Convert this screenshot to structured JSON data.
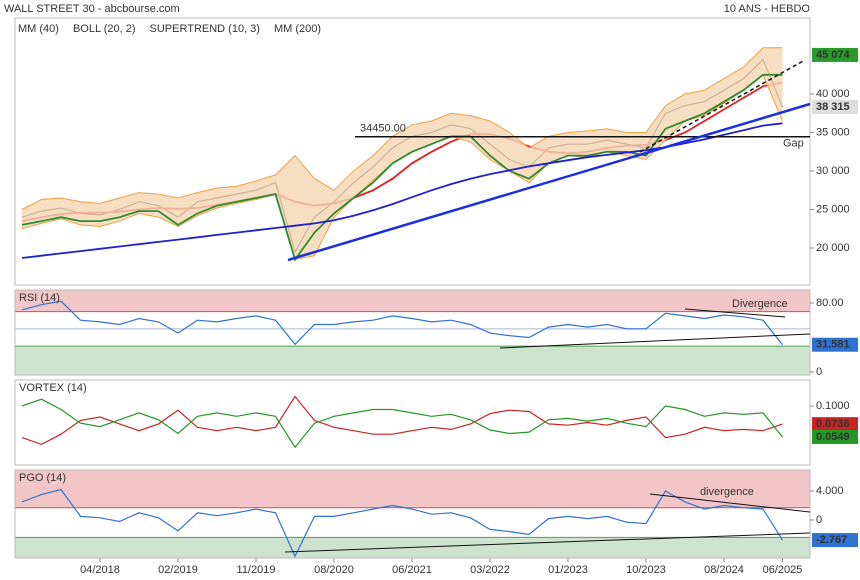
{
  "header": {
    "left": "WALL STREET 30 - abcbourse.com",
    "right": "10 ANS - HEBDO"
  },
  "chart_data": [
    {
      "type": "line",
      "categories": [
        null,
        null,
        null,
        null,
        "04/2018",
        null,
        null,
        null,
        "02/2019",
        null,
        null,
        null,
        "11/2019",
        null,
        null,
        null,
        "08/2020",
        null,
        null,
        null,
        "06/2021",
        null,
        null,
        null,
        "03/2022",
        null,
        null,
        null,
        "01/2023",
        null,
        null,
        null,
        "10/2023",
        null,
        null,
        null,
        "08/2024",
        null,
        null,
        "06/2025"
      ],
      "ylim": [
        15200,
        49870
      ],
      "yticks": [
        {
          "value": 20000,
          "label": "20 000"
        },
        {
          "value": 25000,
          "label": "25 000"
        },
        {
          "value": 30000,
          "label": "30 000"
        },
        {
          "value": 35000,
          "label": "35 000"
        },
        {
          "value": 40000,
          "label": "40 000"
        }
      ],
      "series": [
        {
          "color": "#2b2b2b",
          "values": [
            24000,
            24800,
            25200,
            24500,
            24300,
            25000,
            26000,
            25500,
            24000,
            26000,
            26500,
            27000,
            27500,
            28500,
            19500,
            24000,
            26000,
            28500,
            30500,
            33000,
            34500,
            35000,
            36000,
            35500,
            33500,
            31500,
            30500,
            33000,
            33500,
            33500,
            34000,
            33500,
            33000,
            37500,
            38500,
            39000,
            40500,
            42000,
            44500,
            38315
          ]
        },
        {
          "name": "MM (40)",
          "color": "#e02020",
          "values": [
            23500,
            24000,
            24400,
            24600,
            24600,
            24700,
            25000,
            25200,
            25100,
            25200,
            25600,
            26000,
            26500,
            27000,
            26000,
            25500,
            25800,
            26500,
            27500,
            29000,
            31000,
            32500,
            33800,
            34800,
            34800,
            34200,
            33200,
            32500,
            32300,
            32500,
            33000,
            33300,
            33400,
            34000,
            35000,
            36500,
            38000,
            39500,
            41000,
            41500
          ]
        },
        {
          "name": "BOLL (20, 2)",
          "color": "#f0a040",
          "upper": [
            25000,
            26300,
            26500,
            26000,
            25800,
            26500,
            27200,
            27000,
            26500,
            27200,
            27800,
            28000,
            28700,
            29500,
            32000,
            29000,
            27500,
            30000,
            32000,
            34500,
            36000,
            36500,
            37500,
            37200,
            36500,
            35000,
            33000,
            34500,
            35000,
            35200,
            35500,
            35000,
            35000,
            38500,
            40000,
            40500,
            42000,
            43500,
            46000,
            46000
          ],
          "lower": [
            22500,
            23200,
            23800,
            23000,
            22800,
            23500,
            24500,
            24000,
            22800,
            24200,
            25200,
            25800,
            26300,
            27000,
            18500,
            19000,
            24000,
            26500,
            28800,
            31000,
            32500,
            33500,
            34500,
            33800,
            31500,
            30000,
            28500,
            31000,
            32000,
            31800,
            32500,
            32000,
            31500,
            34000,
            36500,
            37200,
            38800,
            40500,
            42500,
            36500
          ]
        },
        {
          "name": "SUPERTREND (10, 3)",
          "color": "#c00000",
          "line_color": "#2e8b2e",
          "values": [
            23000,
            23500,
            24000,
            23500,
            23500,
            24000,
            24800,
            24800,
            23000,
            24500,
            25500,
            26000,
            26500,
            27000,
            18500,
            22000,
            24500,
            26500,
            28500,
            31000,
            32500,
            33500,
            34500,
            34500,
            32000,
            30000,
            29000,
            31000,
            32000,
            32000,
            32500,
            32500,
            32000,
            35500,
            36500,
            37500,
            39000,
            40500,
            42500,
            42500
          ]
        },
        {
          "name": "MM (200)",
          "color": "#2020d0",
          "values": [
            18700,
            19000,
            19300,
            19600,
            19900,
            20200,
            20500,
            20800,
            21100,
            21400,
            21700,
            22000,
            22300,
            22600,
            22900,
            23200,
            23600,
            24200,
            24900,
            25700,
            26600,
            27500,
            28300,
            29000,
            29600,
            30100,
            30600,
            31000,
            31400,
            31800,
            32100,
            32400,
            32700,
            33100,
            33600,
            34100,
            34700,
            35300,
            35900,
            36200
          ]
        }
      ],
      "level_line": {
        "value": 34450,
        "label": "34450.00"
      },
      "high_label": {
        "value": 45074,
        "label": "45 074",
        "color": "#2a9a2a"
      },
      "last_label": {
        "value": 38315,
        "label": "38 315",
        "color": "#dddddd"
      },
      "gap_text": "Gap"
    },
    {
      "type": "line",
      "title": "RSI (14)",
      "ylim": [
        -3.5,
        95
      ],
      "yticks": [
        {
          "value": 80,
          "label": "80.00"
        },
        0
      ],
      "upper_zone": 70,
      "lower_zone": 30,
      "midline": 50,
      "annotation": "Divergence",
      "series": [
        {
          "color": "#2f72d0",
          "values": [
            72,
            78,
            82,
            60,
            58,
            55,
            62,
            58,
            45,
            60,
            58,
            62,
            65,
            60,
            32,
            55,
            55,
            58,
            60,
            65,
            62,
            58,
            60,
            55,
            45,
            42,
            40,
            52,
            55,
            52,
            55,
            50,
            50,
            68,
            65,
            62,
            66,
            64,
            60,
            31.581
          ]
        }
      ]
    },
    {
      "type": "line",
      "title": "VORTEX (14)",
      "ylim": [
        0.014,
        0.138
      ],
      "yticks": [
        {
          "value": 0.1,
          "label": "0.1000"
        }
      ],
      "series": [
        {
          "color": "#cc2222",
          "values": [
            0.054,
            0.044,
            0.059,
            0.079,
            0.084,
            0.074,
            0.064,
            0.074,
            0.094,
            0.069,
            0.064,
            0.069,
            0.064,
            0.069,
            0.114,
            0.079,
            0.069,
            0.064,
            0.059,
            0.059,
            0.064,
            0.069,
            0.066,
            0.074,
            0.089,
            0.094,
            0.092,
            0.074,
            0.072,
            0.076,
            0.072,
            0.079,
            0.084,
            0.054,
            0.059,
            0.069,
            0.064,
            0.066,
            0.064,
            0.0736
          ]
        },
        {
          "color": "#229922",
          "values": [
            0.1,
            0.11,
            0.095,
            0.075,
            0.07,
            0.08,
            0.09,
            0.08,
            0.06,
            0.085,
            0.09,
            0.085,
            0.09,
            0.085,
            0.04,
            0.075,
            0.085,
            0.09,
            0.095,
            0.095,
            0.09,
            0.085,
            0.088,
            0.08,
            0.065,
            0.06,
            0.062,
            0.08,
            0.082,
            0.078,
            0.082,
            0.075,
            0.07,
            0.1,
            0.095,
            0.085,
            0.09,
            0.088,
            0.09,
            0.0549
          ]
        }
      ]
    },
    {
      "type": "line",
      "title": "PGO (14)",
      "ylim": [
        -5.24,
        6.9
      ],
      "yticks": [
        {
          "value": 4,
          "label": "4.000"
        },
        0
      ],
      "upper_zone": 1.7,
      "lower_zone": -2.4,
      "annotation": "divergence",
      "series": [
        {
          "color": "#2f72d0",
          "values": [
            2.5,
            3.5,
            4.2,
            0.5,
            0.3,
            -0.2,
            1.0,
            0.3,
            -1.5,
            1.0,
            0.6,
            1.0,
            1.5,
            1.0,
            -5.0,
            0.5,
            0.5,
            1.0,
            1.5,
            2.0,
            1.5,
            0.8,
            1.0,
            0.3,
            -1.3,
            -1.6,
            -2.0,
            0.2,
            0.5,
            0.2,
            0.5,
            -0.3,
            -0.5,
            4.0,
            2.5,
            1.5,
            2.0,
            1.7,
            1.5,
            -2.767
          ]
        }
      ]
    }
  ]
}
